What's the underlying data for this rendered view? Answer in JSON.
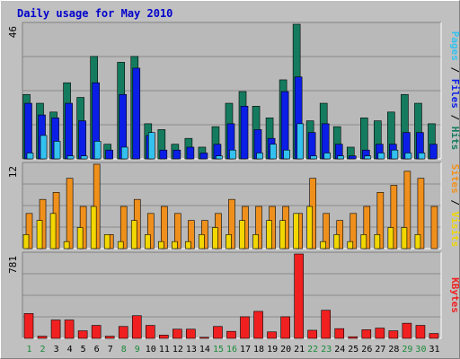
{
  "chart_data": [
    {
      "type": "bar",
      "title": "Daily usage for May 2010",
      "panel": "top",
      "ymax_label": "46",
      "ylim": [
        0,
        46
      ],
      "categories": [
        "1",
        "2",
        "3",
        "4",
        "5",
        "6",
        "7",
        "8",
        "9",
        "10",
        "11",
        "12",
        "13",
        "14",
        "15",
        "16",
        "17",
        "18",
        "19",
        "20",
        "21",
        "22",
        "23",
        "24",
        "25",
        "26",
        "27",
        "28",
        "29",
        "30",
        "31"
      ],
      "weekend_days": [
        "1",
        "2",
        "8",
        "9",
        "15",
        "16",
        "22",
        "23",
        "29",
        "30"
      ],
      "series": [
        {
          "name": "Hits",
          "color": "#157b5f",
          "values": [
            22,
            19,
            16,
            26,
            21,
            35,
            5,
            33,
            35,
            12,
            10,
            5,
            7,
            4,
            11,
            19,
            23,
            18,
            14,
            27,
            46,
            13,
            19,
            11,
            4,
            14,
            13,
            16,
            22,
            19,
            12
          ]
        },
        {
          "name": "Files",
          "color": "#0b1ee6",
          "values": [
            19,
            15,
            14,
            19,
            13,
            26,
            3,
            22,
            31,
            8,
            3,
            3,
            4,
            2,
            5,
            12,
            18,
            10,
            7,
            23,
            28,
            9,
            12,
            5,
            1,
            3,
            5,
            5,
            9,
            9,
            5
          ]
        },
        {
          "name": "Pages",
          "color": "#33c2f0",
          "values": [
            2,
            8,
            6,
            1,
            1,
            6,
            0,
            4,
            0,
            9,
            0,
            0,
            0,
            0,
            1,
            3,
            0,
            2,
            5,
            3,
            12,
            1,
            2,
            1,
            0,
            1,
            2,
            3,
            2,
            2,
            0
          ]
        }
      ],
      "axis_labels": [
        {
          "text": "Pages",
          "color": "#33c2f0"
        },
        {
          "text": " / ",
          "color": "#000000"
        },
        {
          "text": "Files",
          "color": "#0b1ee6"
        },
        {
          "text": " / ",
          "color": "#000000"
        },
        {
          "text": "Hits",
          "color": "#157b5f"
        }
      ]
    },
    {
      "type": "bar",
      "panel": "middle",
      "ymax_label": "12",
      "ylim": [
        0,
        12
      ],
      "series": [
        {
          "name": "Visits",
          "color": "#f2d700",
          "values": [
            2,
            4,
            5,
            1,
            3,
            6,
            2,
            1,
            4,
            2,
            1,
            1,
            1,
            2,
            3,
            2,
            4,
            2,
            4,
            4,
            5,
            6,
            1,
            2,
            1,
            2,
            2,
            3,
            3,
            2,
            0
          ]
        },
        {
          "name": "Sites",
          "color": "#f0901c",
          "values": [
            5,
            7,
            8,
            10,
            6,
            12,
            2,
            6,
            7,
            5,
            6,
            5,
            4,
            4,
            5,
            7,
            6,
            6,
            6,
            6,
            5,
            10,
            5,
            4,
            5,
            6,
            8,
            9,
            11,
            10,
            6
          ]
        }
      ],
      "axis_labels": [
        {
          "text": "Sites",
          "color": "#f0901c"
        },
        {
          "text": " / ",
          "color": "#000000"
        },
        {
          "text": "Visits",
          "color": "#f2d700"
        }
      ]
    },
    {
      "type": "bar",
      "panel": "bottom",
      "ymax_label": "781",
      "ylim": [
        0,
        781
      ],
      "series": [
        {
          "name": "KBytes",
          "color": "#f02020",
          "values": [
            230,
            20,
            170,
            170,
            70,
            120,
            20,
            110,
            210,
            120,
            30,
            85,
            85,
            10,
            110,
            65,
            200,
            250,
            60,
            200,
            781,
            75,
            260,
            90,
            15,
            80,
            95,
            70,
            140,
            120,
            45
          ]
        }
      ],
      "axis_labels": [
        {
          "text": "KBytes",
          "color": "#f02020"
        }
      ]
    }
  ],
  "colors": {
    "frame_bg": "#c0c0c0",
    "plot_bg": "#b9b9b9",
    "title": "#0000cc",
    "weekday_label": "#000000",
    "weekend_label": "#1a8a3a"
  }
}
